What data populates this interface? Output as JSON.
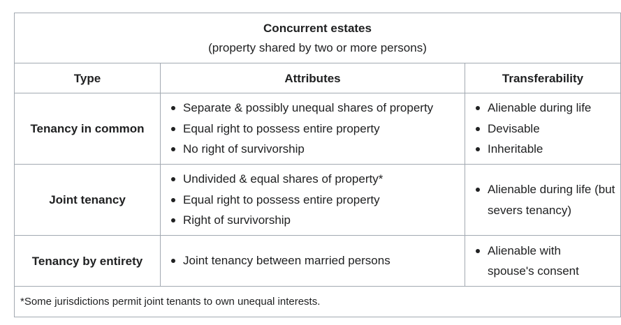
{
  "caption": {
    "title": "Concurrent estates",
    "subtitle": "(property shared by two or more persons)"
  },
  "headers": {
    "type": "Type",
    "attributes": "Attributes",
    "transferability": "Transferability"
  },
  "rows": [
    {
      "type": "Tenancy in common",
      "attributes": [
        "Separate & possibly unequal shares of property",
        "Equal right to possess entire property",
        "No right of survivorship"
      ],
      "transferability": [
        "Alienable during life",
        "Devisable",
        "Inheritable"
      ]
    },
    {
      "type": "Joint tenancy",
      "attributes": [
        "Undivided & equal shares of property*",
        "Equal right to possess entire property",
        "Right of survivorship"
      ],
      "transferability": [
        "Alienable during life (but severs tenancy)"
      ]
    },
    {
      "type": "Tenancy by entirety",
      "attributes": [
        "Joint tenancy between married persons"
      ],
      "transferability": [
        "Alienable with spouse's consent"
      ]
    }
  ],
  "footnote": "*Some jurisdictions permit joint tenants to own unequal interests."
}
